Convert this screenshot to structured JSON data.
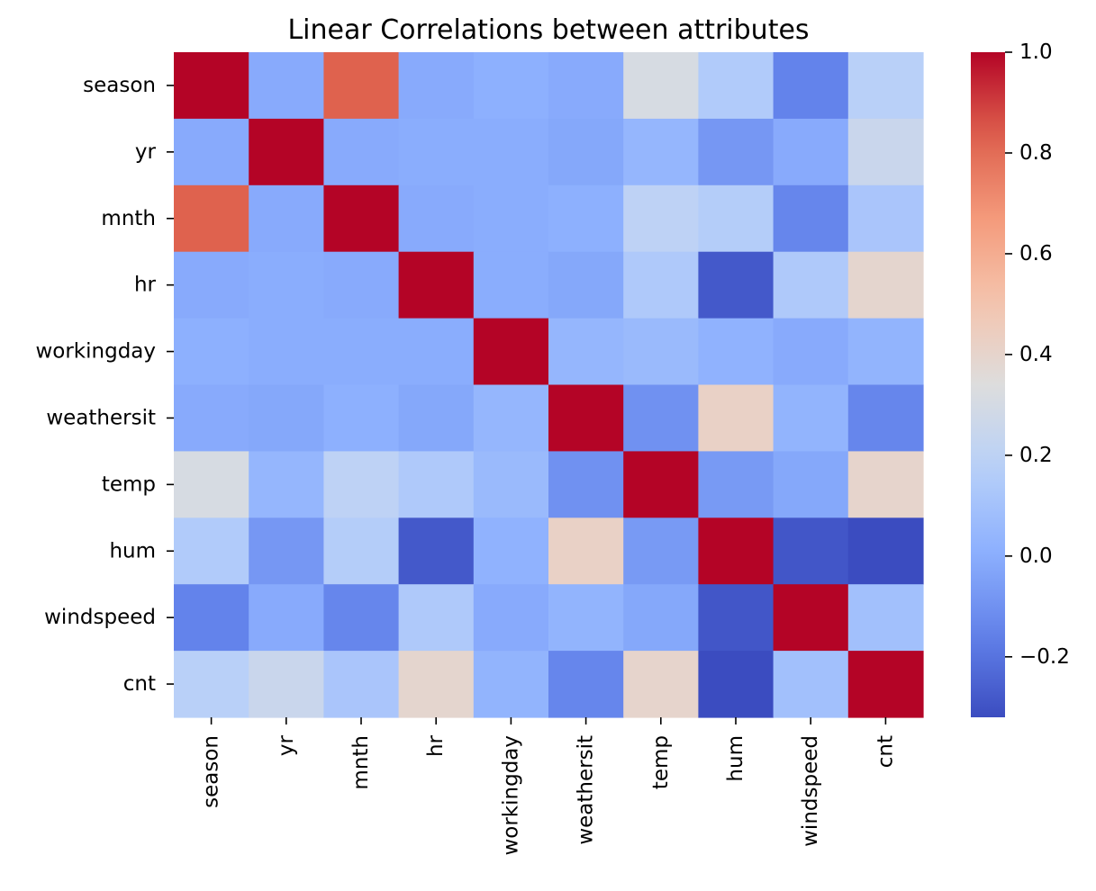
{
  "chart_data": {
    "type": "heatmap",
    "title": "Linear Correlations between attributes",
    "xlabel": "",
    "ylabel": "",
    "labels": [
      "season",
      "yr",
      "mnth",
      "hr",
      "workingday",
      "weathersit",
      "temp",
      "hum",
      "windspeed",
      "cnt"
    ],
    "matrix": [
      [
        1.0,
        -0.01,
        0.83,
        -0.01,
        0.01,
        -0.01,
        0.31,
        0.15,
        -0.15,
        0.18
      ],
      [
        -0.01,
        1.0,
        -0.01,
        -0.0,
        -0.0,
        -0.02,
        0.04,
        -0.08,
        -0.01,
        0.25
      ],
      [
        0.83,
        -0.01,
        1.0,
        -0.01,
        -0.0,
        0.01,
        0.2,
        0.16,
        -0.14,
        0.12
      ],
      [
        -0.01,
        -0.0,
        -0.01,
        1.0,
        0.0,
        -0.02,
        0.14,
        -0.28,
        0.14,
        0.39
      ],
      [
        0.01,
        -0.0,
        -0.0,
        0.0,
        1.0,
        0.04,
        0.06,
        0.02,
        -0.01,
        0.03
      ],
      [
        -0.01,
        -0.02,
        0.01,
        -0.02,
        0.04,
        1.0,
        -0.1,
        0.42,
        0.03,
        -0.14
      ],
      [
        0.31,
        0.04,
        0.2,
        0.14,
        0.06,
        -0.1,
        1.0,
        -0.07,
        -0.02,
        0.4
      ],
      [
        0.15,
        -0.08,
        0.16,
        -0.28,
        0.02,
        0.42,
        -0.07,
        1.0,
        -0.29,
        -0.32
      ],
      [
        -0.15,
        -0.01,
        -0.14,
        0.14,
        -0.01,
        0.03,
        -0.02,
        -0.29,
        1.0,
        0.09
      ],
      [
        0.18,
        0.25,
        0.12,
        0.39,
        0.03,
        -0.14,
        0.4,
        -0.32,
        0.09,
        1.0
      ]
    ],
    "colormap": "coolwarm",
    "vmin": -0.32,
    "vmax": 1.0,
    "colorbar_ticks": [
      {
        "value": 1.0,
        "label": "1.0"
      },
      {
        "value": 0.8,
        "label": "0.8"
      },
      {
        "value": 0.6,
        "label": "0.6"
      },
      {
        "value": 0.4,
        "label": "0.4"
      },
      {
        "value": 0.2,
        "label": "0.2"
      },
      {
        "value": 0.0,
        "label": "0.0"
      },
      {
        "value": -0.2,
        "label": "−0.2"
      }
    ],
    "grid": false,
    "legend": "colorbar-right"
  }
}
